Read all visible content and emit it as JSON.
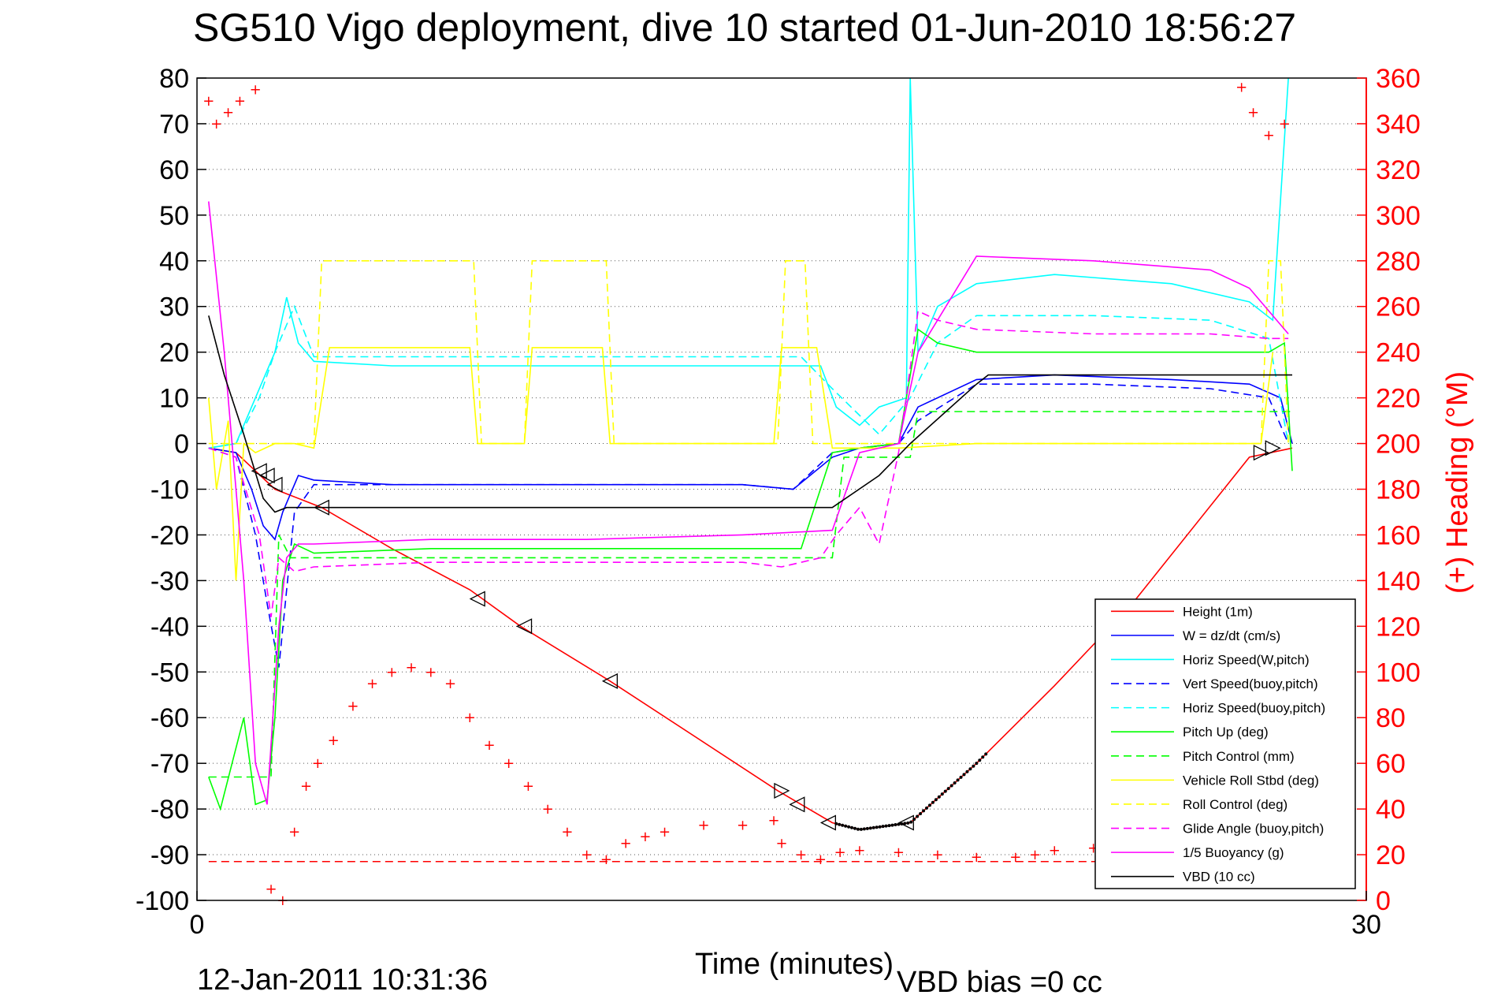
{
  "header": {
    "title": "SG510 Vigo deployment, dive 10 started 01-Jun-2010 18:56:27"
  },
  "footer": {
    "timestamp": "12-Jan-2011 10:31:36",
    "vbd_bias": "VBD bias =0 cc"
  },
  "chart_data": {
    "type": "line",
    "title": "SG510 Vigo deployment, dive 10 started 01-Jun-2010 18:56:27",
    "xlabel": "Time (minutes)",
    "ylabel": "",
    "y2label": "(+) Heading (°M)",
    "xlim": [
      0,
      30
    ],
    "ylim": [
      -100,
      80
    ],
    "y2lim": [
      0,
      360
    ],
    "xticks": [
      0,
      30
    ],
    "yticks": [
      80,
      70,
      60,
      50,
      40,
      30,
      20,
      10,
      0,
      -10,
      -20,
      -30,
      -40,
      -50,
      -60,
      -70,
      -80,
      -90,
      -100
    ],
    "y2ticks": [
      360,
      340,
      320,
      300,
      280,
      260,
      240,
      220,
      200,
      180,
      160,
      140,
      120,
      100,
      80,
      60,
      40,
      20,
      0
    ],
    "grid": "horizontal dotted",
    "legend_position": "bottom-right",
    "colors": {
      "red": "#ff0000",
      "blue": "#0000ff",
      "cyan": "#00ffff",
      "green": "#00ff00",
      "yellow": "#ffff00",
      "magenta": "#ff00ff",
      "black": "#000000"
    },
    "series": [
      {
        "name": "Height (1m)",
        "color": "#ff0000",
        "dash": false,
        "x": [
          0.3,
          1.0,
          2.0,
          3.2,
          5.0,
          7.0,
          8.3,
          10.6,
          14.9,
          15.5,
          16.3,
          17.0,
          18.3,
          20.0,
          22.0,
          24.0,
          27.0,
          28.1
        ],
        "y": [
          -1,
          -2,
          -10,
          -14,
          -23,
          -32,
          -40,
          -52,
          -76,
          -79,
          -83,
          -84.5,
          -83,
          -70,
          -53,
          -35,
          -3,
          -1
        ]
      },
      {
        "name": "W = dz/dt (cm/s)",
        "color": "#0000ff",
        "dash": false,
        "x": [
          0.3,
          1.0,
          1.4,
          1.7,
          2.0,
          2.2,
          2.6,
          3.0,
          5.0,
          8.0,
          11.0,
          14.0,
          15.3,
          16.3,
          17.0,
          18.0,
          18.5,
          20.0,
          22.0,
          25.0,
          27.0,
          27.8,
          28.1
        ],
        "y": [
          -1,
          -2,
          -10,
          -18,
          -21,
          -15,
          -7,
          -8,
          -9,
          -9,
          -9,
          -9,
          -10,
          -3,
          -1,
          0,
          8,
          14,
          15,
          14,
          13,
          10,
          0
        ]
      },
      {
        "name": "Horiz Speed(W,pitch)",
        "color": "#00ffff",
        "dash": false,
        "x": [
          0.3,
          1.0,
          1.5,
          2.0,
          2.3,
          2.6,
          3.0,
          5.0,
          8.0,
          11.0,
          14.0,
          16.0,
          16.4,
          17.0,
          17.5,
          18.2,
          18.3,
          18.5,
          19.0,
          20.0,
          22.0,
          25.0,
          27.0,
          27.6,
          28.0
        ],
        "y": [
          -1,
          0,
          10,
          20,
          32,
          22,
          18,
          17,
          17,
          17,
          17,
          17,
          8,
          4,
          8,
          10,
          80,
          20,
          30,
          35,
          37,
          35,
          31,
          27,
          80
        ]
      },
      {
        "name": "Vert Speed(buoy,pitch)",
        "color": "#0000ff",
        "dash": true,
        "x": [
          0.3,
          1.0,
          1.5,
          1.8,
          2.1,
          2.5,
          3.0,
          6.0,
          10.0,
          14.0,
          15.3,
          16.3,
          17.0,
          18.0,
          18.5,
          20.0,
          23.0,
          26.0,
          27.5,
          28.0
        ],
        "y": [
          -1,
          -3,
          -20,
          -35,
          -49,
          -15,
          -9,
          -9,
          -9,
          -9,
          -10,
          -2,
          -1,
          0,
          5,
          13,
          13,
          12,
          10,
          0
        ]
      },
      {
        "name": "Horiz Speed(buoy,pitch)",
        "color": "#00ffff",
        "dash": true,
        "x": [
          0.3,
          1.0,
          1.6,
          2.0,
          2.5,
          3.0,
          6.0,
          10.0,
          14.0,
          15.5,
          16.3,
          17.5,
          18.3,
          19.0,
          20.0,
          23.0,
          26.0,
          27.5,
          28.0
        ],
        "y": [
          -1,
          0,
          10,
          20,
          30,
          19,
          19,
          19,
          19,
          19,
          12,
          2,
          10,
          22,
          28,
          28,
          27,
          23,
          0
        ]
      },
      {
        "name": "Pitch Up (deg)",
        "color": "#00ff00",
        "dash": false,
        "x": [
          0.3,
          0.6,
          0.9,
          1.2,
          1.5,
          1.8,
          2.0,
          2.2,
          2.5,
          3.0,
          6.0,
          10.0,
          14.0,
          15.5,
          16.3,
          17.0,
          18.0,
          18.5,
          19.0,
          20.0,
          23.0,
          26.0,
          27.5,
          27.9,
          28.1
        ],
        "y": [
          -73,
          -80,
          -70,
          -60,
          -79,
          -78,
          -60,
          -30,
          -22,
          -24,
          -23,
          -23,
          -23,
          -23,
          -2,
          -1,
          0,
          25,
          22,
          20,
          20,
          20,
          20,
          22,
          -6
        ]
      },
      {
        "name": "Pitch Control (mm)",
        "color": "#00ff00",
        "dash": true,
        "x": [
          0.3,
          1.5,
          1.9,
          2.1,
          2.4,
          3.0,
          8.0,
          14.0,
          16.3,
          16.6,
          18.3,
          18.5,
          19.5,
          28.1
        ],
        "y": [
          -73,
          -73,
          -73,
          -20,
          -25,
          -25,
          -25,
          -25,
          -25,
          -3,
          -3,
          7,
          7,
          7
        ]
      },
      {
        "name": "Vehicle Roll Stbd (deg)",
        "color": "#ffff00",
        "dash": false,
        "x": [
          0.3,
          0.5,
          0.8,
          1.0,
          1.2,
          1.5,
          2.0,
          2.5,
          3.0,
          3.4,
          5.0,
          7.0,
          7.2,
          8.4,
          8.6,
          10.4,
          10.6,
          14.8,
          15.0,
          15.9,
          16.3,
          18.0,
          20.0,
          23.0,
          25.0,
          27.0,
          27.3,
          27.6
        ],
        "y": [
          10,
          -10,
          5,
          -30,
          0,
          -2,
          0,
          0,
          -1,
          21,
          21,
          21,
          0,
          0,
          21,
          21,
          0,
          0,
          21,
          21,
          -1,
          -1,
          0,
          0,
          0,
          0,
          0,
          20
        ]
      },
      {
        "name": "Roll Control (deg)",
        "color": "#ffff00",
        "dash": true,
        "x": [
          0.3,
          2.5,
          3.0,
          3.2,
          7.1,
          7.3,
          8.4,
          8.6,
          10.5,
          10.7,
          14.9,
          15.1,
          15.6,
          15.8,
          27.3,
          27.5,
          27.8,
          28.0
        ],
        "y": [
          0,
          0,
          0,
          40,
          40,
          0,
          0,
          40,
          40,
          0,
          0,
          40,
          40,
          0,
          0,
          40,
          40,
          0
        ]
      },
      {
        "name": "Glide Angle (buoy,pitch)",
        "color": "#ff00ff",
        "dash": true,
        "x": [
          0.3,
          1.0,
          1.6,
          1.9,
          2.1,
          2.5,
          3.0,
          6.0,
          10.0,
          14.0,
          15.0,
          16.0,
          16.4,
          17.0,
          17.5,
          18.0,
          18.5,
          19.0,
          20.0,
          23.0,
          26.0,
          27.5,
          28.0
        ],
        "y": [
          -1,
          -3,
          -20,
          -38,
          -25,
          -28,
          -27,
          -26,
          -26,
          -26,
          -27,
          -25,
          -20,
          -14,
          -22,
          -2,
          29,
          27,
          25,
          24,
          24,
          23,
          23
        ]
      },
      {
        "name": "1/5 Buoyancy (g)",
        "color": "#ff00ff",
        "dash": false,
        "x": [
          0.3,
          0.7,
          1.2,
          1.5,
          1.8,
          2.1,
          2.3,
          2.6,
          3.0,
          6.0,
          10.0,
          14.0,
          16.3,
          17.0,
          18.0,
          18.5,
          20.0,
          23.0,
          26.0,
          27.0,
          28.0
        ],
        "y": [
          53,
          20,
          -30,
          -70,
          -79,
          -40,
          -25,
          -22,
          -22,
          -21,
          -21,
          -20,
          -19,
          -2,
          0,
          20,
          41,
          40,
          38,
          34,
          24
        ]
      },
      {
        "name": "VBD (10 cc)",
        "color": "#000000",
        "dash": false,
        "x": [
          0.3,
          0.7,
          1.2,
          1.7,
          2.0,
          2.3,
          3.0,
          6.0,
          10.0,
          14.0,
          16.3,
          17.5,
          18.3,
          20.0,
          20.3,
          28.1
        ],
        "y": [
          28,
          15,
          2,
          -12,
          -15,
          -14,
          -14,
          -14,
          -14,
          -14,
          -14,
          -7,
          0,
          13,
          15,
          15
        ]
      }
    ],
    "heading_series": {
      "name": "(+) Heading",
      "color": "#ff0000",
      "x": [
        0.3,
        0.5,
        0.8,
        1.1,
        1.5,
        1.9,
        2.2,
        2.5,
        2.8,
        3.1,
        3.5,
        4.0,
        4.5,
        5.0,
        5.5,
        6.0,
        6.5,
        7.0,
        7.5,
        8.0,
        8.5,
        9.0,
        9.5,
        10.0,
        10.5,
        11.0,
        11.5,
        12.0,
        13.0,
        14.0,
        14.8,
        15.0,
        15.5,
        16.0,
        16.5,
        17.0,
        18.0,
        19.0,
        20.0,
        21.0,
        21.5,
        22.0,
        23.0,
        24.0,
        26.0,
        26.8,
        27.1,
        27.5,
        27.9
      ],
      "y": [
        350,
        340,
        345,
        350,
        355,
        5,
        0,
        30,
        50,
        60,
        70,
        85,
        95,
        100,
        102,
        100,
        95,
        80,
        68,
        60,
        50,
        40,
        30,
        20,
        18,
        25,
        28,
        30,
        33,
        33,
        35,
        25,
        20,
        18,
        21,
        22,
        21,
        20,
        19,
        19,
        20,
        22,
        23,
        22,
        20,
        356,
        345,
        335,
        340
      ]
    },
    "reference_line": {
      "name": "",
      "color": "#ff0000",
      "dash": true,
      "y": -91.5
    },
    "markers": {
      "left_triangles": [
        [
          1.6,
          -6
        ],
        [
          1.8,
          -7
        ],
        [
          2.0,
          -9
        ],
        [
          3.2,
          -14
        ],
        [
          7.2,
          -34
        ],
        [
          8.4,
          -40
        ],
        [
          10.6,
          -52
        ],
        [
          15.4,
          -79
        ],
        [
          16.2,
          -83
        ],
        [
          18.2,
          -83
        ]
      ],
      "right_triangles": [
        [
          15.0,
          -76
        ],
        [
          27.3,
          -2
        ],
        [
          27.6,
          -1
        ]
      ],
      "black_dots_range": [
        16.4,
        20.3
      ]
    }
  }
}
